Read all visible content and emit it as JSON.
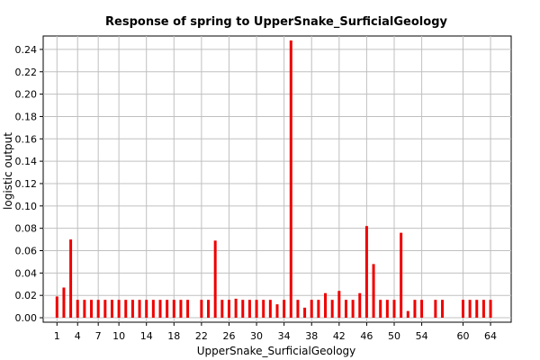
{
  "chart_data": {
    "type": "bar",
    "title": "Response of spring to UpperSnake_SurficialGeology",
    "xlabel": "UpperSnake_SurficialGeology",
    "ylabel": "logistic output",
    "ylim": [
      -0.004,
      0.252
    ],
    "xlim": [
      -1,
      67
    ],
    "grid": true,
    "bar_color": "#ee0000",
    "y_ticks": [
      "0.00",
      "0.02",
      "0.04",
      "0.06",
      "0.08",
      "0.10",
      "0.12",
      "0.14",
      "0.16",
      "0.18",
      "0.20",
      "0.22",
      "0.24"
    ],
    "x_ticks": [
      "1",
      "4",
      "7",
      "10",
      "14",
      "18",
      "22",
      "26",
      "30",
      "34",
      "38",
      "42",
      "46",
      "50",
      "54",
      "60",
      "64"
    ],
    "categories": [
      1,
      2,
      3,
      4,
      5,
      6,
      7,
      8,
      9,
      10,
      11,
      12,
      13,
      14,
      15,
      16,
      17,
      18,
      19,
      20,
      22,
      23,
      24,
      25,
      26,
      27,
      28,
      29,
      30,
      31,
      32,
      33,
      34,
      35,
      36,
      37,
      38,
      39,
      40,
      41,
      42,
      43,
      44,
      45,
      46,
      47,
      48,
      49,
      50,
      51,
      52,
      53,
      54,
      56,
      57,
      60,
      61,
      62,
      63,
      64
    ],
    "values": [
      0.019,
      0.027,
      0.07,
      0.016,
      0.016,
      0.016,
      0.016,
      0.016,
      0.016,
      0.016,
      0.016,
      0.016,
      0.016,
      0.016,
      0.016,
      0.016,
      0.016,
      0.016,
      0.016,
      0.016,
      0.016,
      0.016,
      0.069,
      0.016,
      0.016,
      0.017,
      0.016,
      0.016,
      0.016,
      0.016,
      0.016,
      0.012,
      0.016,
      0.248,
      0.016,
      0.009,
      0.016,
      0.016,
      0.022,
      0.016,
      0.024,
      0.016,
      0.016,
      0.022,
      0.082,
      0.048,
      0.016,
      0.016,
      0.016,
      0.076,
      0.006,
      0.016,
      0.016,
      0.016,
      0.016,
      0.016,
      0.016,
      0.016,
      0.016,
      0.016
    ]
  }
}
